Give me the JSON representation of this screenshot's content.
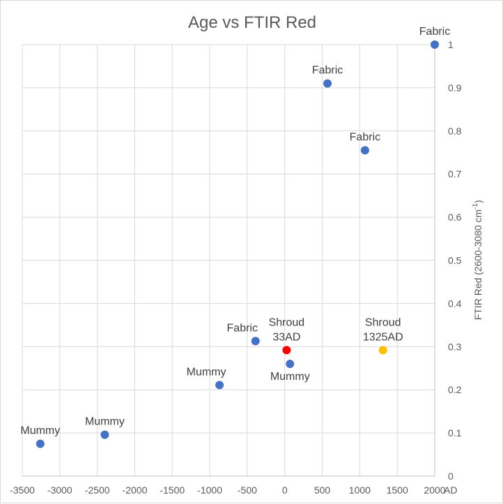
{
  "chart_data": {
    "type": "scatter",
    "title": "Age vs FTIR Red",
    "xlabel_unit": "AD",
    "ylabel": "FTIR Red (2600-3080 cm",
    "ylabel_sup": "-1",
    "ylabel_close": ")",
    "xlim": [
      -3500,
      2000
    ],
    "ylim": [
      0,
      1
    ],
    "x_ticks": [
      "-3500",
      "-3000",
      "-2500",
      "-2000",
      "-1500",
      "-1000",
      "-500",
      "0",
      "500",
      "1000",
      "1500",
      "2000"
    ],
    "y_ticks": [
      "0",
      "0.1",
      "0.2",
      "0.3",
      "0.4",
      "0.5",
      "0.6",
      "0.7",
      "0.8",
      "0.9",
      "1"
    ],
    "grid": true,
    "colors": {
      "default": "#4472c4",
      "shroud_33": "#ff0000",
      "shroud_1325": "#ffc000",
      "grid": "#d9d9d9",
      "axis": "#bfbfbf"
    },
    "points": [
      {
        "x": 2000,
        "y": 1.0,
        "label": [
          "Fabric"
        ],
        "color": "default",
        "label_pos": "above"
      },
      {
        "x": 570,
        "y": 0.91,
        "label": [
          "Fabric"
        ],
        "color": "default",
        "label_pos": "above"
      },
      {
        "x": 1070,
        "y": 0.755,
        "label": [
          "Fabric"
        ],
        "color": "default",
        "label_pos": "above"
      },
      {
        "x": -390,
        "y": 0.313,
        "label": [
          "Fabric"
        ],
        "color": "default",
        "label_pos": "above-left"
      },
      {
        "x": 25,
        "y": 0.292,
        "label": [
          "Shroud",
          "33AD"
        ],
        "color": "shroud_33",
        "label_pos": "above"
      },
      {
        "x": 70,
        "y": 0.26,
        "label": [
          "Mummy"
        ],
        "color": "default",
        "label_pos": "below"
      },
      {
        "x": 1310,
        "y": 0.292,
        "label": [
          "Shroud",
          "1325AD"
        ],
        "color": "shroud_1325",
        "label_pos": "above"
      },
      {
        "x": -870,
        "y": 0.211,
        "label": [
          "Mummy"
        ],
        "color": "default",
        "label_pos": "above-left"
      },
      {
        "x": -3260,
        "y": 0.075,
        "label": [
          "Mummy"
        ],
        "color": "default",
        "label_pos": "above"
      },
      {
        "x": -2400,
        "y": 0.096,
        "label": [
          "Mummy"
        ],
        "color": "default",
        "label_pos": "above"
      }
    ]
  }
}
